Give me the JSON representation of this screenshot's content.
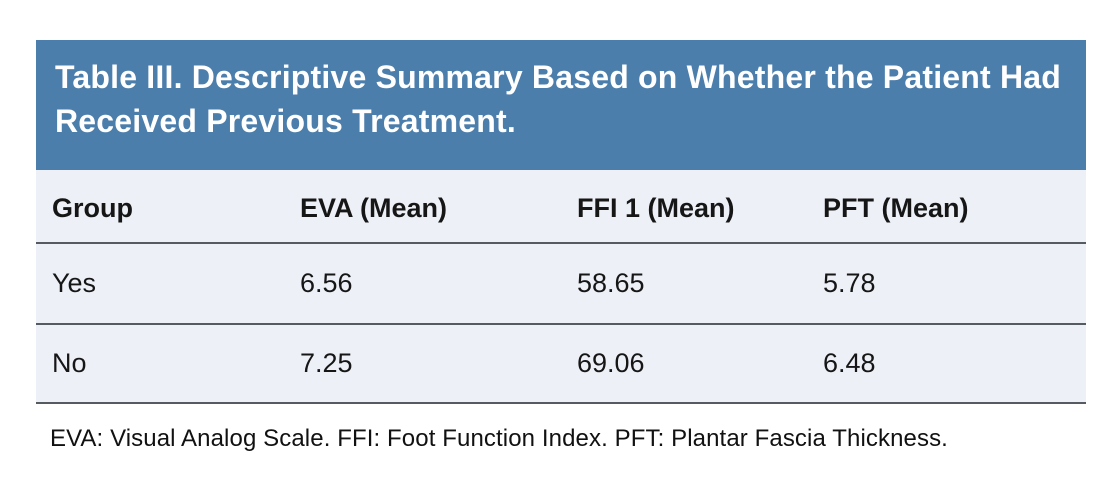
{
  "title": "Table III. Descriptive Summary Based on Whether the Patient Had Received Previous Treatment.",
  "table": {
    "columns": [
      "Group",
      "EVA (Mean)",
      "FFI 1 (Mean)",
      "PFT (Mean)"
    ],
    "rows": [
      {
        "group": "Yes",
        "eva": "6.56",
        "ffi": "58.65",
        "pft": "5.78"
      },
      {
        "group": "No",
        "eva": "7.25",
        "ffi": "69.06",
        "pft": "6.48"
      }
    ]
  },
  "footnote": "EVA: Visual Analog Scale. FFI: Foot Function Index. PFT: Plantar Fascia Thickness.",
  "colors": {
    "header_bg": "#4C7EAC",
    "header_text": "#FFFFFF",
    "body_bg": "#EDF0F7",
    "divider": "#565B61",
    "body_text": "#161616"
  },
  "chart_data": {
    "type": "table",
    "title": "Table III. Descriptive Summary Based on Whether the Patient Had Received Previous Treatment.",
    "columns": [
      "Group",
      "EVA (Mean)",
      "FFI 1 (Mean)",
      "PFT (Mean)"
    ],
    "rows": [
      [
        "Yes",
        6.56,
        58.65,
        5.78
      ],
      [
        "No",
        7.25,
        69.06,
        6.48
      ]
    ],
    "footnote": "EVA: Visual Analog Scale. FFI: Foot Function Index. PFT: Plantar Fascia Thickness."
  }
}
